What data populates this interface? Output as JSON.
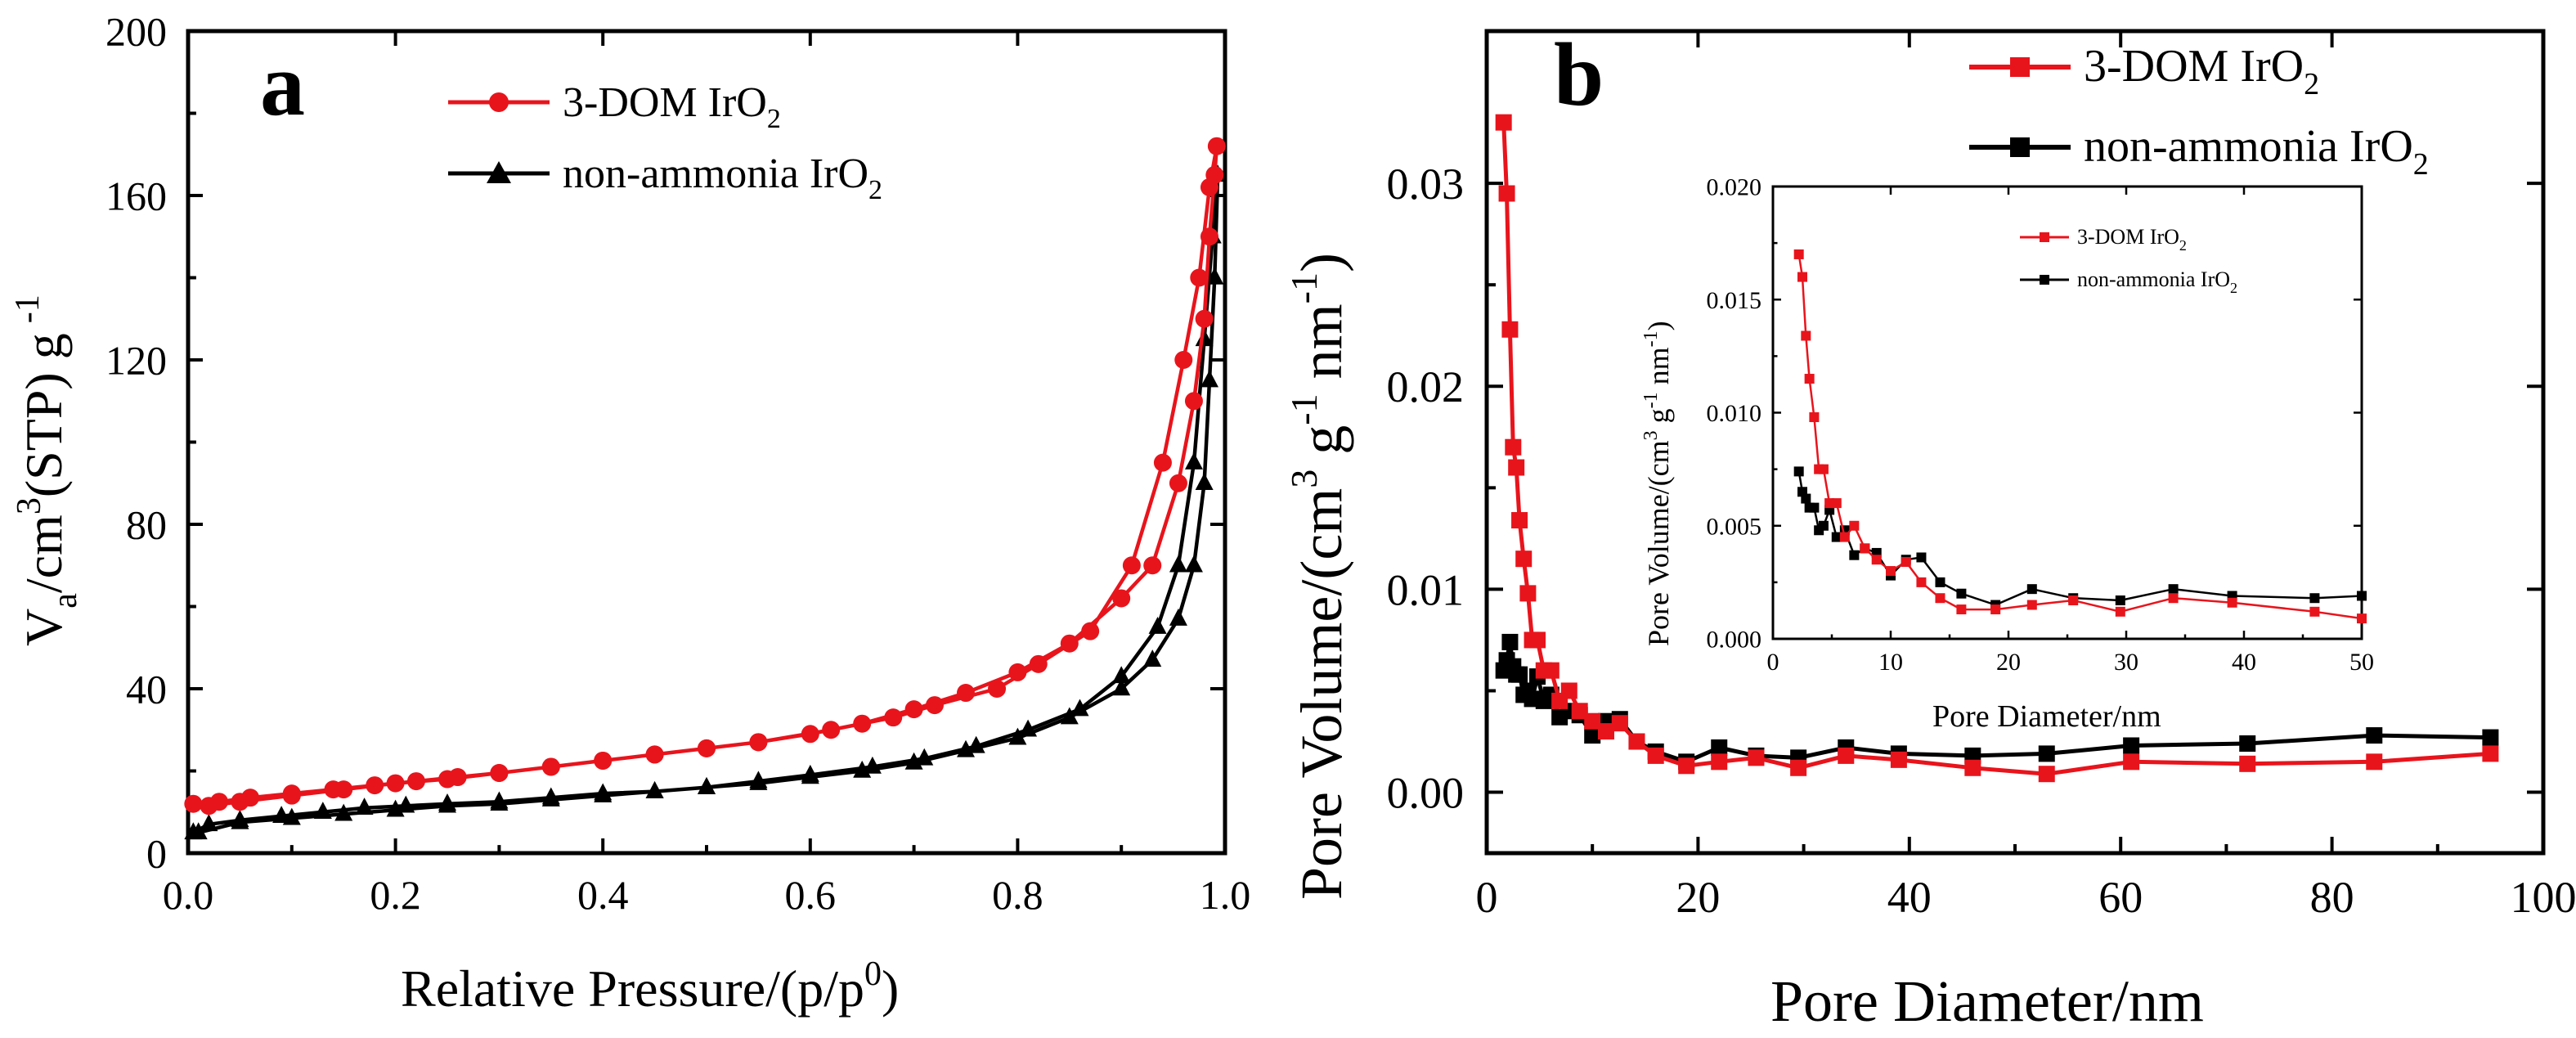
{
  "chart_data": [
    {
      "id": "a",
      "panel_label": "a",
      "type": "line",
      "xlabel_main": "Relative Pressure/(p/p",
      "xlabel_sup": "0",
      "xlabel_close": ")",
      "ylabel_v": "V",
      "ylabel_a": "a",
      "ylabel_cm": "/cm",
      "ylabel_3": "3",
      "ylabel_stp": "(STP) g",
      "ylabel_m1": "-1",
      "xlim": [
        0,
        1.0
      ],
      "ylim": [
        0,
        200
      ],
      "xticks": [
        "0.0",
        "0.2",
        "0.4",
        "0.6",
        "0.8",
        "1.0"
      ],
      "yticks": [
        "0",
        "40",
        "80",
        "120",
        "160",
        "200"
      ],
      "legend_position": "top-left",
      "series": [
        {
          "name": "3-DOM IrO",
          "sub": "2",
          "color": "#e8141c",
          "marker": "circle",
          "x": [
            0.005,
            0.03,
            0.06,
            0.1,
            0.14,
            0.18,
            0.22,
            0.26,
            0.3,
            0.35,
            0.4,
            0.45,
            0.5,
            0.55,
            0.6,
            0.65,
            0.7,
            0.75,
            0.8,
            0.85,
            0.9,
            0.93,
            0.955,
            0.97,
            0.98,
            0.985,
            0.99,
            0.992,
            0.985,
            0.975,
            0.96,
            0.94,
            0.91,
            0.87,
            0.82,
            0.78,
            0.72,
            0.68,
            0.62,
            0.55,
            0.5,
            0.45,
            0.4,
            0.35,
            0.3,
            0.25,
            0.2,
            0.15,
            0.1,
            0.05,
            0.02
          ],
          "y": [
            12,
            12.5,
            13.5,
            14.5,
            15.5,
            16.5,
            17.5,
            18.5,
            19.5,
            21,
            22.5,
            24,
            25.5,
            27,
            29,
            31.5,
            35,
            39,
            44,
            51,
            62,
            70,
            90,
            110,
            130,
            150,
            165,
            172,
            162,
            140,
            120,
            95,
            70,
            54,
            46,
            40,
            36,
            33,
            30,
            27,
            25.5,
            24,
            22.5,
            21,
            19.5,
            18,
            17,
            15.5,
            14,
            12.5,
            11.5
          ]
        },
        {
          "name": "non-ammonia IrO",
          "sub": "2",
          "color": "#000000",
          "marker": "triangle",
          "x": [
            0.005,
            0.02,
            0.05,
            0.09,
            0.13,
            0.17,
            0.21,
            0.25,
            0.3,
            0.35,
            0.4,
            0.45,
            0.5,
            0.55,
            0.6,
            0.65,
            0.7,
            0.75,
            0.8,
            0.85,
            0.9,
            0.93,
            0.955,
            0.97,
            0.98,
            0.985,
            0.99,
            0.993,
            0.988,
            0.98,
            0.97,
            0.955,
            0.935,
            0.9,
            0.86,
            0.81,
            0.76,
            0.71,
            0.66,
            0.6,
            0.55,
            0.5,
            0.45,
            0.4,
            0.35,
            0.3,
            0.25,
            0.2,
            0.15,
            0.1,
            0.05,
            0.01
          ],
          "y": [
            5,
            7,
            8,
            9,
            10,
            11,
            11.5,
            12,
            12.5,
            13.5,
            14.5,
            15,
            16,
            17,
            18.5,
            20,
            22,
            25,
            28,
            33,
            40,
            47,
            57,
            70,
            90,
            115,
            140,
            165,
            150,
            125,
            95,
            70,
            55,
            43,
            35,
            30,
            26,
            23,
            21,
            19,
            17.5,
            16,
            15,
            14,
            13,
            12,
            11.5,
            10.5,
            9.5,
            8.5,
            7.5,
            5
          ]
        }
      ]
    },
    {
      "id": "b",
      "panel_label": "b",
      "type": "line",
      "xlabel": "Pore Diameter/nm",
      "ylabel_main": "Pore Volume/(cm",
      "ylabel_3": "3",
      "ylabel_g": " g",
      "ylabel_m1": "-1",
      "ylabel_nm": " nm",
      "ylabel_close": ")",
      "xlim": [
        0,
        100
      ],
      "ylim": [
        -0.003,
        0.0375
      ],
      "xticks": [
        "0",
        "20",
        "40",
        "60",
        "80",
        "100"
      ],
      "yticks": [
        "0.00",
        "0.01",
        "0.02",
        "0.03"
      ],
      "legend_position": "top-right",
      "series": [
        {
          "name": "3-DOM IrO",
          "sub": "2",
          "color": "#e8141c",
          "marker": "square",
          "x": [
            1.6,
            1.9,
            2.2,
            2.5,
            2.8,
            3.1,
            3.5,
            3.9,
            4.3,
            4.8,
            5.4,
            6.1,
            6.9,
            7.8,
            8.8,
            10.0,
            11.3,
            12.6,
            14.2,
            16.0,
            18.9,
            22.0,
            25.5,
            29.5,
            34.0,
            39.0,
            46.0,
            53.0,
            61.0,
            72.0,
            84.0,
            95.0
          ],
          "x_note": "pore diameter (nm)",
          "y": [
            0.033,
            0.0295,
            0.0228,
            0.017,
            0.016,
            0.0134,
            0.0115,
            0.0098,
            0.0075,
            0.0075,
            0.006,
            0.006,
            0.0045,
            0.005,
            0.004,
            0.0035,
            0.003,
            0.0034,
            0.0025,
            0.0018,
            0.0013,
            0.0015,
            0.0017,
            0.0012,
            0.0018,
            0.0016,
            0.0012,
            0.0009,
            0.0015,
            0.0014,
            0.0015,
            0.0019
          ]
        },
        {
          "name": "non-ammonia IrO",
          "sub": "2",
          "color": "#000000",
          "marker": "square",
          "x": [
            1.6,
            1.9,
            2.2,
            2.5,
            2.8,
            3.1,
            3.5,
            3.9,
            4.3,
            4.8,
            5.4,
            6.1,
            6.9,
            7.8,
            8.8,
            10.0,
            11.3,
            12.6,
            14.2,
            16.0,
            18.9,
            22.0,
            25.5,
            29.5,
            34.0,
            39.0,
            46.0,
            53.0,
            61.0,
            72.0,
            84.0,
            95.0
          ],
          "y": [
            0.006,
            0.0065,
            0.0074,
            0.0062,
            0.0058,
            0.0058,
            0.0048,
            0.005,
            0.0046,
            0.0057,
            0.0045,
            0.0048,
            0.0037,
            0.004,
            0.0038,
            0.0028,
            0.0035,
            0.0036,
            0.0025,
            0.002,
            0.0015,
            0.0022,
            0.0018,
            0.0017,
            0.0022,
            0.0019,
            0.0018,
            0.0019,
            0.0023,
            0.0024,
            0.0028,
            0.0027
          ]
        }
      ]
    },
    {
      "id": "b-inset",
      "type": "line",
      "xlabel": "Pore Diameter/nm",
      "ylabel_main": "Pore Volume/(cm",
      "ylabel_3": "3",
      "ylabel_g": " g",
      "ylabel_m1": "-1",
      "ylabel_nm": " nm",
      "ylabel_close": ")",
      "xlim": [
        0,
        50
      ],
      "ylim": [
        0,
        0.02
      ],
      "xticks": [
        "0",
        "10",
        "20",
        "30",
        "40",
        "50"
      ],
      "yticks": [
        "0.000",
        "0.005",
        "0.010",
        "0.015",
        "0.020"
      ],
      "legend_position": "top-right",
      "series": [
        {
          "name": "3-DOM IrO",
          "sub": "2",
          "color": "#e8141c",
          "marker": "square",
          "x": [
            2.2,
            2.5,
            2.8,
            3.1,
            3.5,
            3.9,
            4.3,
            4.8,
            5.4,
            6.1,
            6.9,
            7.8,
            8.8,
            10.0,
            11.3,
            12.6,
            14.2,
            16.0,
            18.9,
            22.0,
            25.5,
            29.5,
            34.0,
            39.0,
            46.0,
            50.0
          ],
          "y": [
            0.017,
            0.016,
            0.0134,
            0.0115,
            0.0098,
            0.0075,
            0.0075,
            0.006,
            0.006,
            0.0045,
            0.005,
            0.004,
            0.0035,
            0.003,
            0.0034,
            0.0025,
            0.0018,
            0.0013,
            0.0013,
            0.0015,
            0.0017,
            0.0012,
            0.0018,
            0.0016,
            0.0012,
            0.0009
          ]
        },
        {
          "name": "non-ammonia IrO",
          "sub": "2",
          "color": "#000000",
          "marker": "square",
          "x": [
            2.2,
            2.5,
            2.8,
            3.1,
            3.5,
            3.9,
            4.3,
            4.8,
            5.4,
            6.1,
            6.9,
            7.8,
            8.8,
            10.0,
            11.3,
            12.6,
            14.2,
            16.0,
            18.9,
            22.0,
            25.5,
            29.5,
            34.0,
            39.0,
            46.0,
            50.0
          ],
          "y": [
            0.0074,
            0.0065,
            0.0062,
            0.0058,
            0.0058,
            0.0048,
            0.005,
            0.0057,
            0.0045,
            0.0048,
            0.0037,
            0.004,
            0.0038,
            0.0028,
            0.0035,
            0.0036,
            0.0025,
            0.002,
            0.0015,
            0.0022,
            0.0018,
            0.0017,
            0.0022,
            0.0019,
            0.0018,
            0.0019
          ]
        }
      ]
    }
  ]
}
